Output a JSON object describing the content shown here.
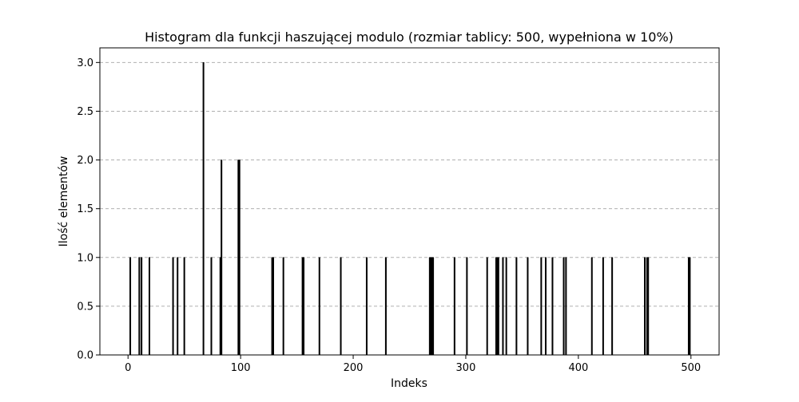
{
  "chart_data": {
    "type": "bar",
    "title": "Histogram dla funkcji haszującej modulo (rozmiar tablicy: 500, wypełniona w 10%)",
    "xlabel": "Indeks",
    "ylabel": "Ilość elementów",
    "xlim": [
      -25,
      525
    ],
    "ylim": [
      0,
      3.15
    ],
    "xticks": [
      0,
      100,
      200,
      300,
      400,
      500
    ],
    "yticks": [
      0.0,
      0.5,
      1.0,
      1.5,
      2.0,
      2.5,
      3.0
    ],
    "xtick_labels": [
      "0",
      "100",
      "200",
      "300",
      "400",
      "500"
    ],
    "ytick_labels": [
      "0.0",
      "0.5",
      "1.0",
      "1.5",
      "2.0",
      "2.5",
      "3.0"
    ],
    "grid": {
      "axis": "y",
      "style": "dashed"
    },
    "bar_color": "#000000",
    "series": [
      {
        "x": [
          2,
          10,
          12,
          19,
          40,
          44,
          50,
          67,
          74,
          82,
          83,
          98,
          99,
          128,
          129,
          138,
          155,
          156,
          170,
          189,
          212,
          229,
          268,
          269,
          270,
          271,
          290,
          301,
          319,
          327,
          328,
          329,
          333,
          336,
          345,
          355,
          367,
          371,
          377,
          387,
          389,
          412,
          422,
          430,
          459,
          461,
          462,
          498,
          499
        ],
        "values": [
          1,
          1,
          1,
          1,
          1,
          1,
          1,
          3,
          1,
          1,
          2,
          2,
          2,
          1,
          1,
          1,
          1,
          1,
          1,
          1,
          1,
          1,
          1,
          1,
          1,
          1,
          1,
          1,
          1,
          1,
          1,
          1,
          1,
          1,
          1,
          1,
          1,
          1,
          1,
          1,
          1,
          1,
          1,
          1,
          1,
          1,
          1,
          1,
          1
        ]
      }
    ]
  }
}
